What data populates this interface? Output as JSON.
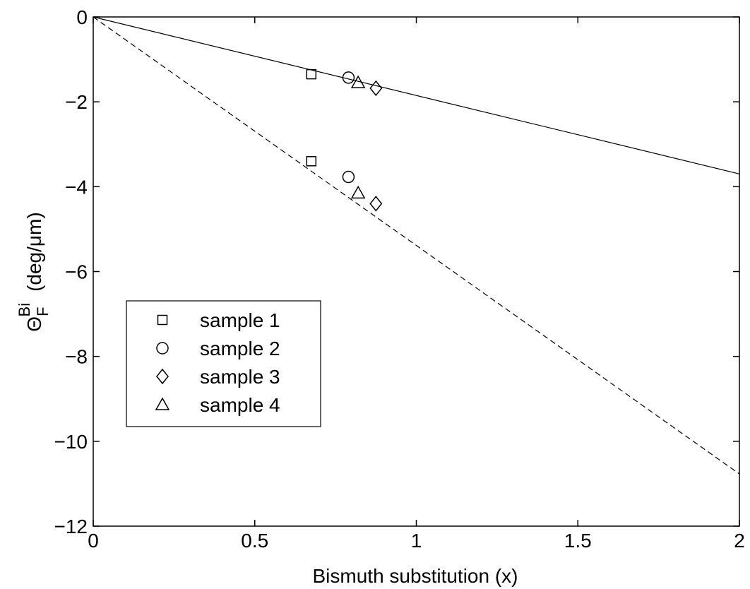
{
  "chart_data": {
    "type": "scatter",
    "xlabel": "Bismuth substitution (x)",
    "ylabel": {
      "symbol": "Θ",
      "subscript": "F",
      "superscript": "Bi",
      "units": "(deg/μm)"
    },
    "xlim": [
      0,
      2
    ],
    "ylim": [
      -12,
      0
    ],
    "xticks": [
      0,
      0.5,
      1,
      1.5,
      2
    ],
    "xtick_labels": [
      "0",
      "0.5",
      "1",
      "1.5",
      "2"
    ],
    "yticks": [
      0,
      -2,
      -4,
      -6,
      -8,
      -10,
      -12
    ],
    "ytick_labels": [
      "0",
      "−2",
      "−4",
      "−6",
      "−8",
      "−10",
      "−12"
    ],
    "grid": false,
    "legend_position": "left",
    "series": [
      {
        "name": "sample 1",
        "marker": "square",
        "points": [
          [
            0.675,
            -1.35
          ],
          [
            0.675,
            -3.4
          ]
        ]
      },
      {
        "name": "sample 2",
        "marker": "circle",
        "points": [
          [
            0.79,
            -1.43
          ],
          [
            0.79,
            -3.77
          ]
        ]
      },
      {
        "name": "sample 3",
        "marker": "diamond",
        "points": [
          [
            0.875,
            -1.68
          ],
          [
            0.875,
            -4.4
          ]
        ]
      },
      {
        "name": "sample 4",
        "marker": "triangle",
        "points": [
          [
            0.82,
            -1.55
          ],
          [
            0.82,
            -4.15
          ]
        ]
      }
    ],
    "fit_lines": [
      {
        "style": "solid",
        "points": [
          [
            0,
            0
          ],
          [
            2,
            -3.7
          ]
        ]
      },
      {
        "style": "dashed",
        "points": [
          [
            0,
            0
          ],
          [
            2,
            -10.77
          ]
        ]
      }
    ]
  }
}
